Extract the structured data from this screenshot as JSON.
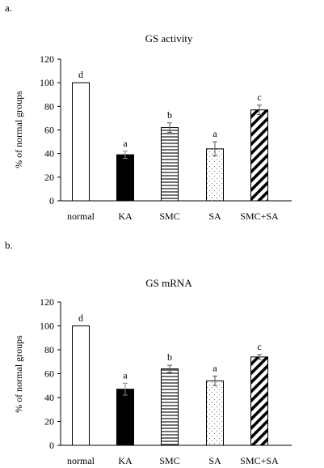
{
  "chart_data": [
    {
      "panel_label": "a.",
      "type": "bar",
      "title": "GS activity",
      "ylabel": "% of normal groups",
      "xlabel": "",
      "ylim": [
        0,
        120
      ],
      "yticks": [
        "0",
        "20",
        "40",
        "60",
        "80",
        "100",
        "120"
      ],
      "categories": [
        "normal",
        "KA",
        "SMC",
        "SA",
        "SMC+SA"
      ],
      "values": [
        100,
        39,
        62,
        44,
        77
      ],
      "errors": [
        0,
        3,
        4,
        6,
        4
      ],
      "significance_letters": [
        "d",
        "a",
        "b",
        "a",
        "c"
      ],
      "fills": [
        "white",
        "solid-black",
        "horizontal-lines",
        "dots",
        "diagonal-hatch"
      ],
      "grid": false
    },
    {
      "panel_label": "b.",
      "type": "bar",
      "title": "GS mRNA",
      "ylabel": "% of normal groups",
      "xlabel": "",
      "ylim": [
        0,
        120
      ],
      "yticks": [
        "0",
        "20",
        "40",
        "60",
        "80",
        "100",
        "120"
      ],
      "categories": [
        "normal",
        "KA",
        "SMC",
        "SA",
        "SMC+SA"
      ],
      "values": [
        100,
        47,
        64,
        54,
        74
      ],
      "errors": [
        0,
        5,
        3,
        4,
        2
      ],
      "significance_letters": [
        "d",
        "a",
        "b",
        "a",
        "c"
      ],
      "fills": [
        "white",
        "solid-black",
        "horizontal-lines",
        "dots",
        "diagonal-hatch"
      ],
      "grid": false
    }
  ]
}
